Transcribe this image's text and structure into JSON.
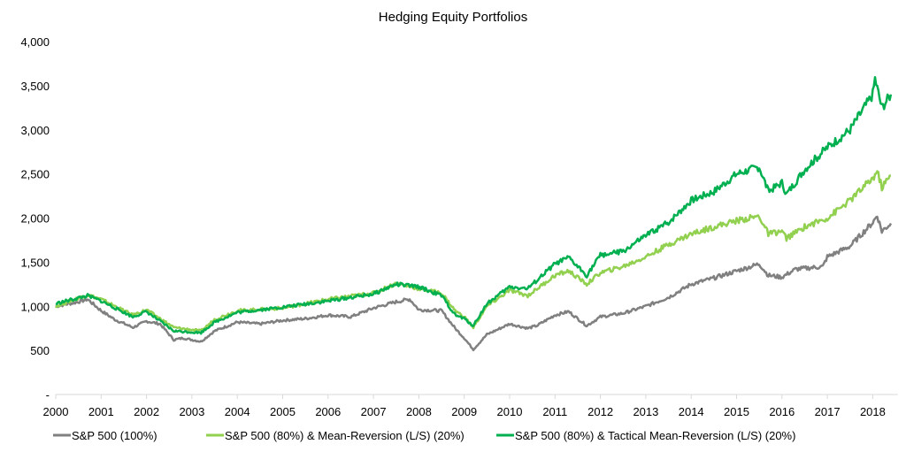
{
  "chart_data": {
    "type": "line",
    "title": "Hedging Equity Portfolios",
    "xlabel": "",
    "ylabel": "",
    "xlim": [
      2000,
      2018.4
    ],
    "ylim": [
      0,
      4000
    ],
    "x_ticks": [
      "2000",
      "2001",
      "2002",
      "2003",
      "2004",
      "2005",
      "2006",
      "2007",
      "2008",
      "2009",
      "2010",
      "2011",
      "2012",
      "2013",
      "2014",
      "2015",
      "2016",
      "2017",
      "2018"
    ],
    "y_ticks": [
      "-",
      "500",
      "1,000",
      "1,500",
      "2,000",
      "2,500",
      "3,000",
      "3,500",
      "4,000"
    ],
    "grid": false,
    "legend_position": "bottom",
    "series": [
      {
        "name": "S&P 500 (100%)",
        "color": "#808080",
        "x": [
          2000,
          2000.5,
          2000.7,
          2001,
          2001.3,
          2001.7,
          2002,
          2002.3,
          2002.6,
          2002.8,
          2003,
          2003.2,
          2003.5,
          2004,
          2004.5,
          2005,
          2005.5,
          2006,
          2006.5,
          2007,
          2007.5,
          2007.8,
          2008,
          2008.5,
          2008.8,
          2009,
          2009.2,
          2009.5,
          2010,
          2010.4,
          2010.6,
          2011,
          2011.3,
          2011.7,
          2012,
          2012.5,
          2013,
          2013.5,
          2014,
          2014.5,
          2015,
          2015.5,
          2015.7,
          2016,
          2016.3,
          2016.9,
          2017,
          2017.5,
          2018,
          2018.1,
          2018.2,
          2018.4
        ],
        "y": [
          1000,
          1050,
          1080,
          950,
          850,
          760,
          830,
          800,
          620,
          640,
          620,
          600,
          720,
          820,
          800,
          840,
          860,
          900,
          880,
          980,
          1050,
          1080,
          960,
          950,
          750,
          640,
          510,
          680,
          800,
          750,
          780,
          900,
          940,
          780,
          880,
          920,
          1000,
          1100,
          1250,
          1320,
          1400,
          1480,
          1350,
          1330,
          1420,
          1450,
          1560,
          1680,
          1950,
          2030,
          1850,
          1940
        ]
      },
      {
        "name": "S&P 500 (80%) & Mean-Reversion (L/S) (20%)",
        "color": "#92D050",
        "x": [
          2000,
          2000.7,
          2001,
          2001.7,
          2002,
          2002.6,
          2003.2,
          2003.5,
          2004,
          2005,
          2006,
          2007,
          2007.5,
          2008,
          2008.5,
          2008.8,
          2009,
          2009.2,
          2009.5,
          2010,
          2010.4,
          2011,
          2011.3,
          2011.7,
          2012,
          2012.5,
          2013,
          2013.5,
          2014,
          2014.5,
          2015,
          2015.5,
          2015.7,
          2016,
          2016.1,
          2016.5,
          2017,
          2017.5,
          2018,
          2018.1,
          2018.2,
          2018.4
        ],
        "y": [
          1000,
          1130,
          1080,
          900,
          960,
          760,
          720,
          850,
          950,
          980,
          1080,
          1150,
          1260,
          1200,
          1150,
          950,
          880,
          760,
          1000,
          1180,
          1120,
          1350,
          1400,
          1250,
          1380,
          1450,
          1560,
          1700,
          1820,
          1900,
          1970,
          2020,
          1820,
          1850,
          1770,
          1900,
          2000,
          2200,
          2450,
          2530,
          2350,
          2480
        ]
      },
      {
        "name": "S&P 500 (80%) & Tactical Mean-Reversion (L/S) (20%)",
        "color": "#00B050",
        "x": [
          2000,
          2000.7,
          2001,
          2001.7,
          2002,
          2002.6,
          2003.2,
          2003.5,
          2004,
          2005,
          2006,
          2007,
          2007.5,
          2008,
          2008.5,
          2008.8,
          2009,
          2009.2,
          2009.5,
          2010,
          2010.4,
          2011,
          2011.3,
          2011.7,
          2012,
          2012.5,
          2013,
          2013.5,
          2014,
          2014.5,
          2015,
          2015.5,
          2015.7,
          2016,
          2016.1,
          2016.5,
          2017,
          2017.5,
          2018,
          2018.05,
          2018.2,
          2018.4
        ],
        "y": [
          1030,
          1120,
          1060,
          880,
          940,
          720,
          700,
          820,
          930,
          990,
          1060,
          1140,
          1250,
          1220,
          1120,
          900,
          860,
          780,
          1030,
          1220,
          1200,
          1480,
          1550,
          1350,
          1580,
          1620,
          1800,
          1950,
          2200,
          2300,
          2500,
          2580,
          2300,
          2400,
          2270,
          2550,
          2800,
          3000,
          3400,
          3580,
          3250,
          3400
        ]
      }
    ]
  }
}
